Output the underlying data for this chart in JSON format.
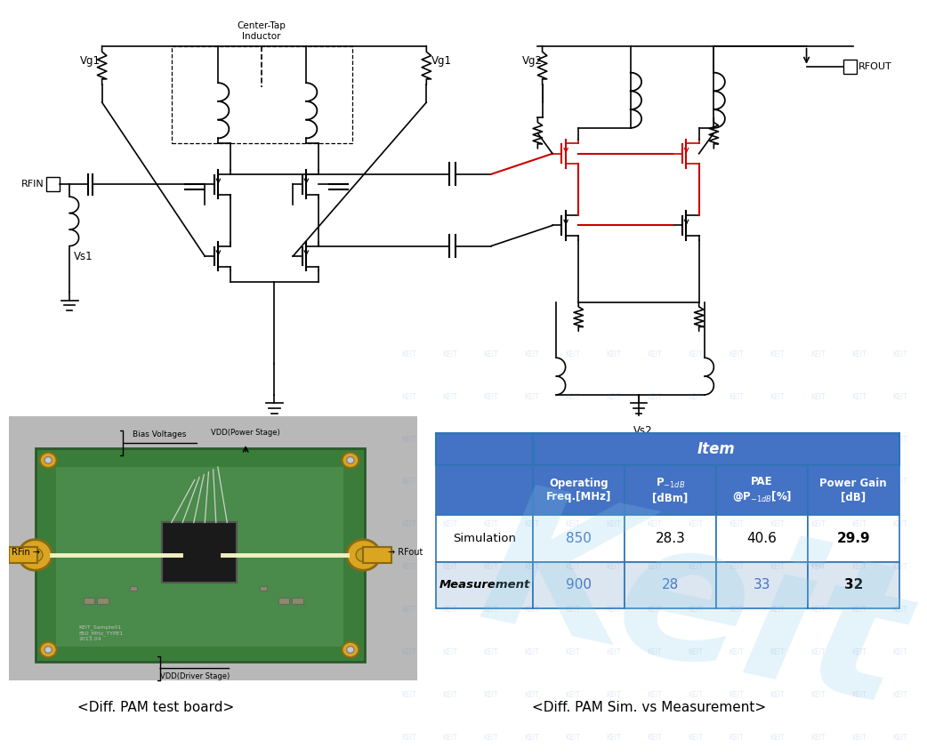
{
  "bg_color": "#ffffff",
  "table_header_bg": "#4472C4",
  "table_row1_bg": "#ffffff",
  "table_row2_bg": "#dce6f1",
  "table_border_color": "#2E75B6",
  "rows": [
    [
      "Simulation",
      "850",
      "28.3",
      "40.6",
      "29.9"
    ],
    [
      "Measurement",
      "900",
      "28",
      "33",
      "32"
    ]
  ],
  "caption1": "<Diff. PAM test board>",
  "caption2": "<Diff. PAM Sim. vs Measurement>",
  "col_headers": [
    "Operating\nFreq.[MHz]",
    "P$_{-1dB}$\n[dBm]",
    "PAE\n@P$_{-1dB}$[%]",
    "Power Gain\n[dB]"
  ],
  "red_color": "#CC0000",
  "black": "#000000",
  "blue_data": "#4472C4",
  "schematic_note": "Center-Tap\nInductor",
  "rfin_label": "RFIN",
  "rfout_label": "RFOUT",
  "vg1_label": "Vg1",
  "vg2_label": "Vg2",
  "vs1_label": "Vs1",
  "vs2_label": "Vs2",
  "rfin_arrow": "RFin →",
  "rfout_arrow": "→ RFout",
  "bias_label": "Bias Voltages",
  "vdd_power_label": "VDD(Power Stage)",
  "vdd_driver_label": "VDD(Driver Stage)"
}
